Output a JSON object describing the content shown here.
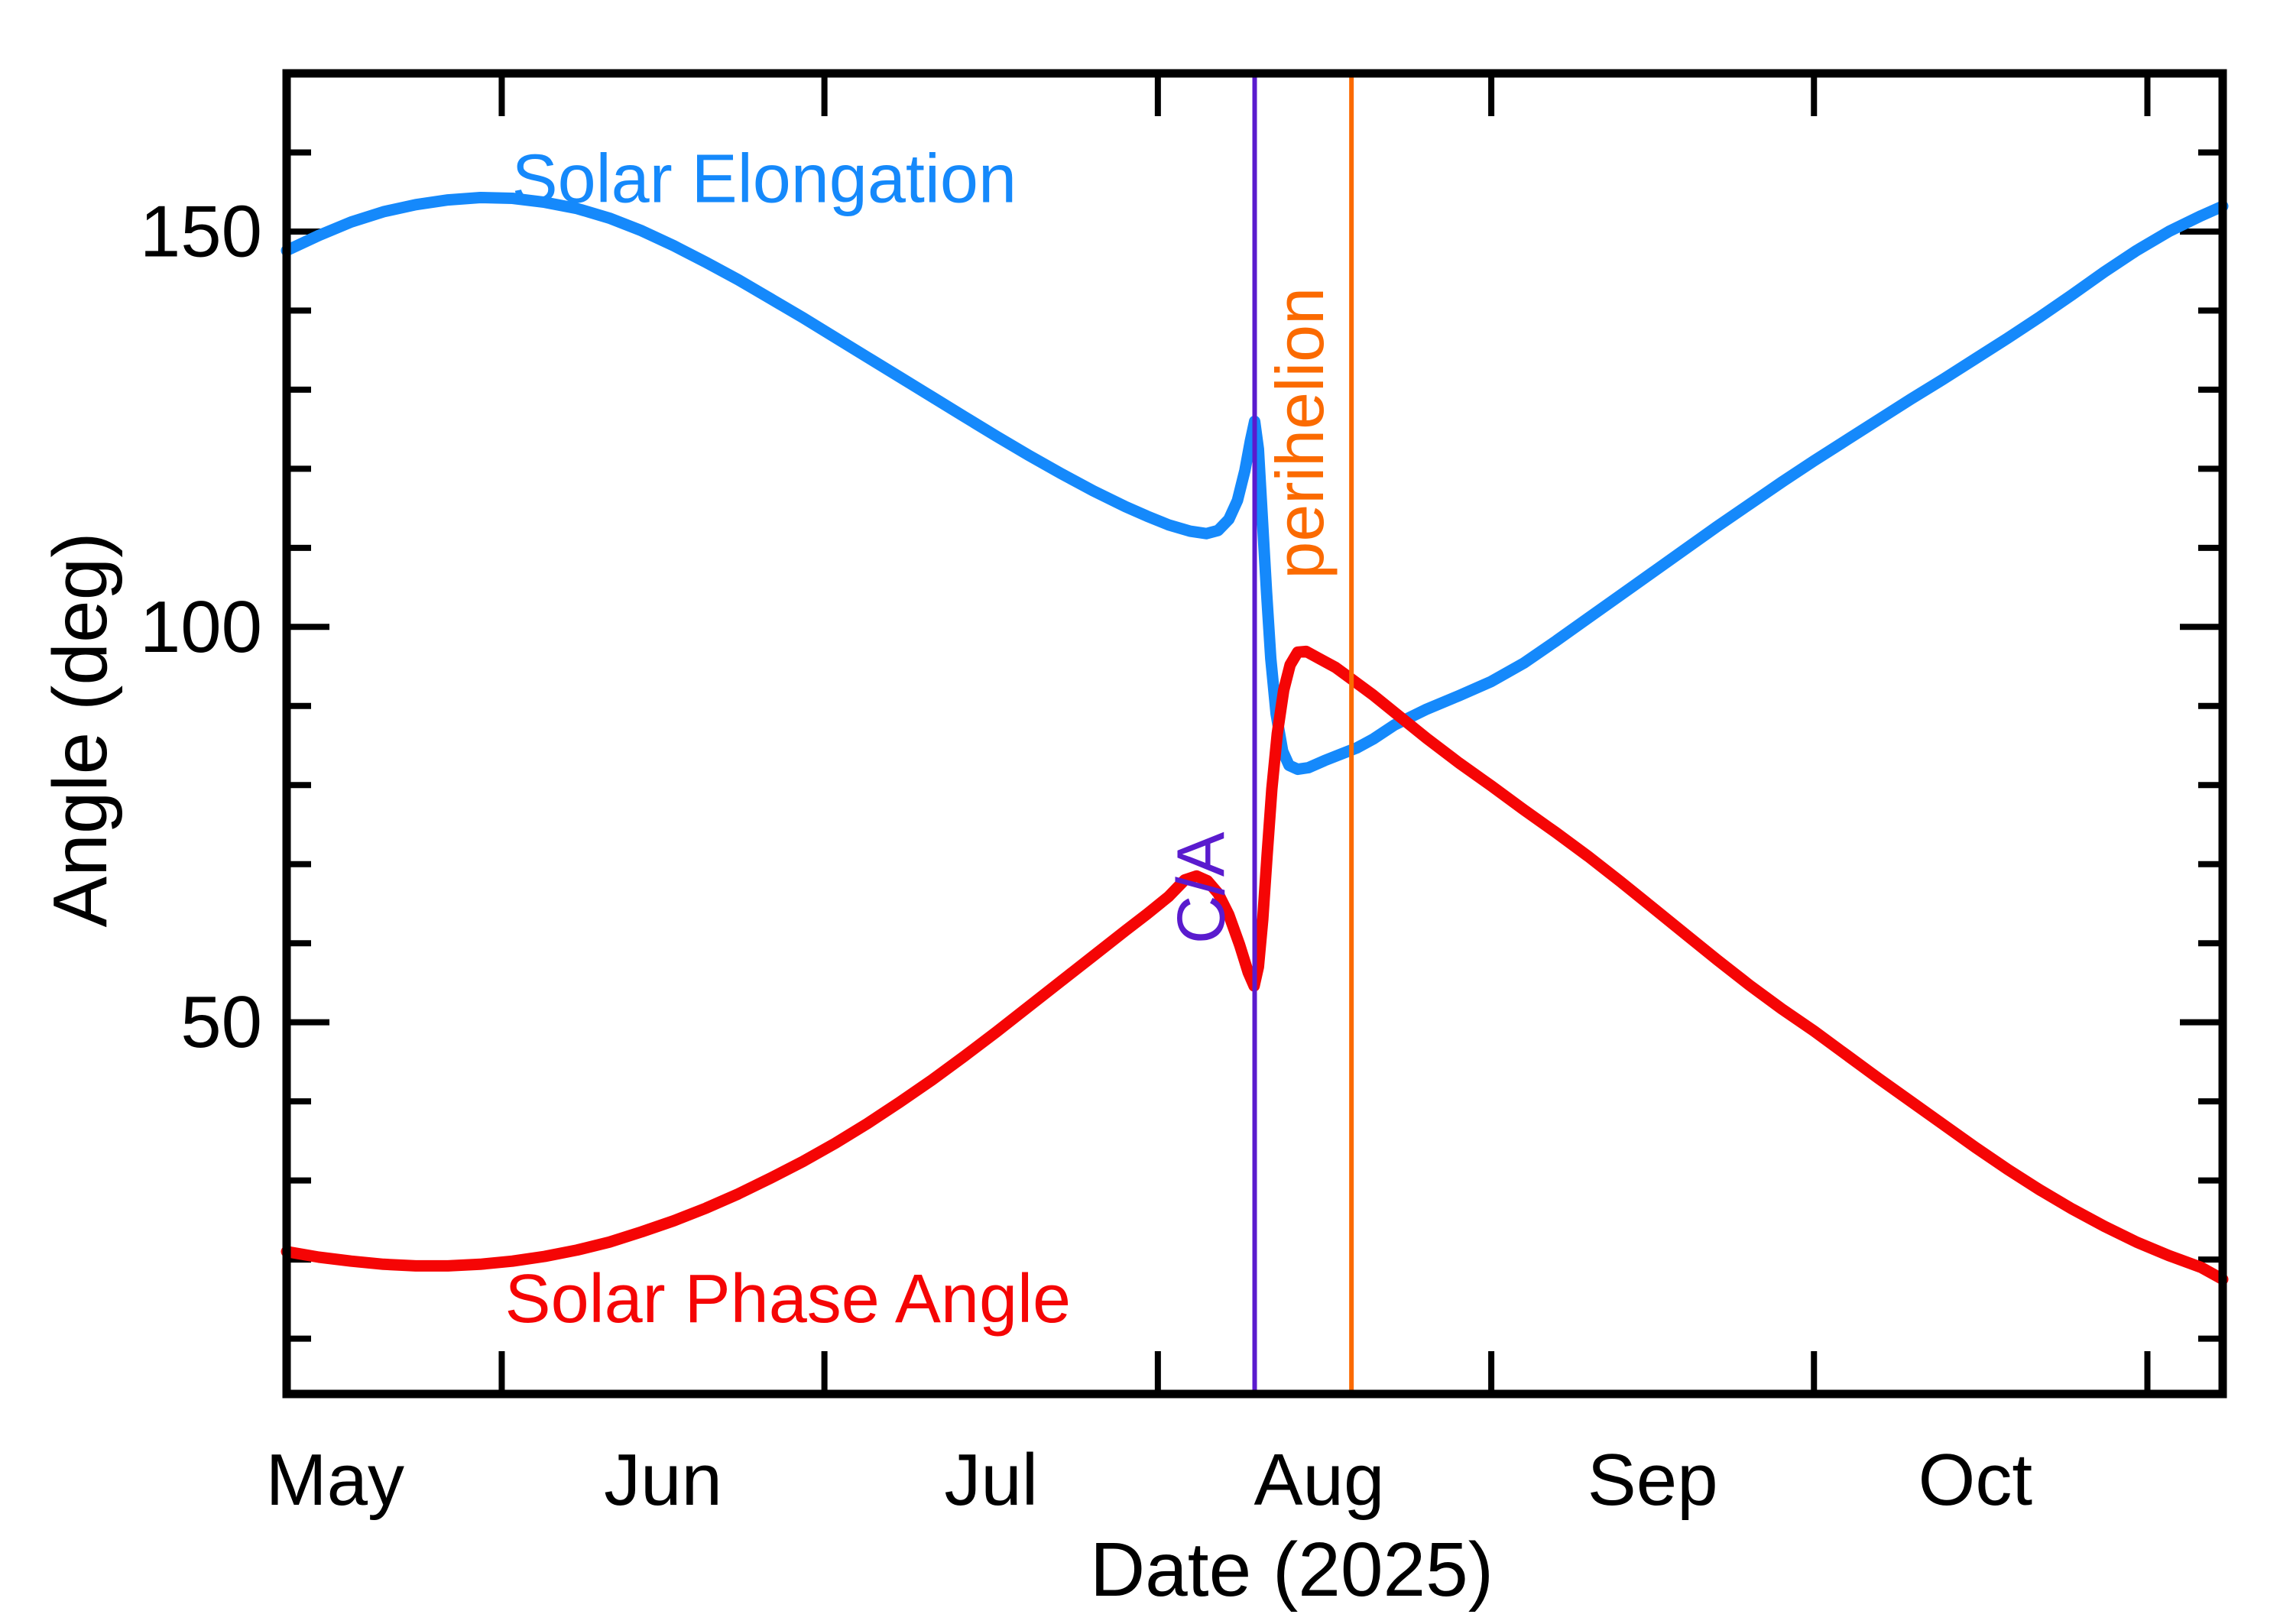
{
  "figure": {
    "background": "#ffffff",
    "frame_color": "#000000"
  },
  "chart_data": {
    "type": "line",
    "title": "",
    "xlabel": "Date (2025)",
    "ylabel": "Angle (deg)",
    "grid": "off",
    "legend": "none (inline curve labels)",
    "x_axis": {
      "kind": "date",
      "range_days": [
        0,
        180
      ],
      "major_tick_days": [
        20,
        50,
        81,
        112,
        142,
        173
      ],
      "month_labels": [
        {
          "label": "May",
          "day": 4.5
        },
        {
          "label": "Jun",
          "day": 35
        },
        {
          "label": "Jul",
          "day": 65.5
        },
        {
          "label": "Aug",
          "day": 96
        },
        {
          "label": "Sep",
          "day": 127
        },
        {
          "label": "Oct",
          "day": 157
        }
      ]
    },
    "y_axis": {
      "range": [
        3,
        170
      ],
      "major_ticks": [
        50,
        100,
        150
      ],
      "major_tick_labels": [
        "50",
        "100",
        "150"
      ],
      "minor_tick_step": 10
    },
    "series": [
      {
        "name": "Solar Elongation",
        "color": "#1589FB",
        "points": [
          [
            0,
            147.6
          ],
          [
            3,
            149.5
          ],
          [
            6,
            151.2
          ],
          [
            9,
            152.5
          ],
          [
            12,
            153.4
          ],
          [
            15,
            154.0
          ],
          [
            18,
            154.3
          ],
          [
            21,
            154.2
          ],
          [
            24,
            153.7
          ],
          [
            27,
            152.9
          ],
          [
            30,
            151.7
          ],
          [
            33,
            150.1
          ],
          [
            36,
            148.2
          ],
          [
            39,
            146.1
          ],
          [
            42,
            143.9
          ],
          [
            45,
            141.5
          ],
          [
            48,
            139.1
          ],
          [
            51,
            136.6
          ],
          [
            54,
            134.1
          ],
          [
            57,
            131.6
          ],
          [
            60,
            129.1
          ],
          [
            63,
            126.6
          ],
          [
            66,
            124.1
          ],
          [
            69,
            121.7
          ],
          [
            72,
            119.4
          ],
          [
            75,
            117.2
          ],
          [
            78,
            115.2
          ],
          [
            80,
            114.0
          ],
          [
            82,
            112.9
          ],
          [
            84,
            112.1
          ],
          [
            85.5,
            111.8
          ],
          [
            86.6,
            112.2
          ],
          [
            87.6,
            113.6
          ],
          [
            88.4,
            116.0
          ],
          [
            89.1,
            119.8
          ],
          [
            89.6,
            123.5
          ],
          [
            90,
            126.0
          ],
          [
            90.35,
            122.5
          ],
          [
            90.7,
            114.0
          ],
          [
            91.1,
            104.5
          ],
          [
            91.5,
            96.0
          ],
          [
            92,
            89.0
          ],
          [
            92.6,
            84.3
          ],
          [
            93.2,
            82.5
          ],
          [
            94,
            82.0
          ],
          [
            95,
            82.2
          ],
          [
            96.5,
            83.1
          ],
          [
            98,
            83.9
          ],
          [
            99.5,
            84.7
          ],
          [
            101,
            85.8
          ],
          [
            103,
            87.6
          ],
          [
            106,
            89.6
          ],
          [
            109,
            91.3
          ],
          [
            112,
            93.1
          ],
          [
            115,
            95.4
          ],
          [
            118,
            98.2
          ],
          [
            121,
            101.1
          ],
          [
            124,
            104.0
          ],
          [
            127,
            106.9
          ],
          [
            130,
            109.8
          ],
          [
            133,
            112.7
          ],
          [
            136,
            115.5
          ],
          [
            139,
            118.3
          ],
          [
            142,
            121.0
          ],
          [
            145,
            123.6
          ],
          [
            148,
            126.2
          ],
          [
            151,
            128.8
          ],
          [
            154,
            131.3
          ],
          [
            157,
            133.9
          ],
          [
            160,
            136.5
          ],
          [
            163,
            139.2
          ],
          [
            166,
            142.0
          ],
          [
            169,
            144.9
          ],
          [
            172,
            147.6
          ],
          [
            175,
            150.0
          ],
          [
            178,
            152.0
          ],
          [
            180,
            153.2
          ]
        ]
      },
      {
        "name": "Solar Phase Angle",
        "color": "#F50505",
        "points": [
          [
            0,
            21.0
          ],
          [
            3,
            20.3
          ],
          [
            6,
            19.8
          ],
          [
            9,
            19.4
          ],
          [
            12,
            19.2
          ],
          [
            15,
            19.2
          ],
          [
            18,
            19.4
          ],
          [
            21,
            19.8
          ],
          [
            24,
            20.4
          ],
          [
            27,
            21.2
          ],
          [
            30,
            22.2
          ],
          [
            33,
            23.5
          ],
          [
            36,
            24.9
          ],
          [
            39,
            26.5
          ],
          [
            42,
            28.3
          ],
          [
            45,
            30.3
          ],
          [
            48,
            32.4
          ],
          [
            51,
            34.7
          ],
          [
            54,
            37.2
          ],
          [
            57,
            39.9
          ],
          [
            60,
            42.7
          ],
          [
            63,
            45.7
          ],
          [
            66,
            48.8
          ],
          [
            69,
            52.0
          ],
          [
            72,
            55.2
          ],
          [
            75,
            58.4
          ],
          [
            78,
            61.6
          ],
          [
            80,
            63.7
          ],
          [
            82,
            65.9
          ],
          [
            83.5,
            68.0
          ],
          [
            84.6,
            68.5
          ],
          [
            85.6,
            67.9
          ],
          [
            86.6,
            66.3
          ],
          [
            87.6,
            63.6
          ],
          [
            88.6,
            59.8
          ],
          [
            89.4,
            56.3
          ],
          [
            89.95,
            54.6
          ],
          [
            90.35,
            57.0
          ],
          [
            90.75,
            63.0
          ],
          [
            91.15,
            71.0
          ],
          [
            91.6,
            79.5
          ],
          [
            92.1,
            86.5
          ],
          [
            92.7,
            92.0
          ],
          [
            93.3,
            95.2
          ],
          [
            94,
            96.8
          ],
          [
            94.8,
            96.9
          ],
          [
            96,
            96.0
          ],
          [
            97.5,
            94.9
          ],
          [
            99,
            93.4
          ],
          [
            101,
            91.4
          ],
          [
            103,
            89.2
          ],
          [
            106,
            85.9
          ],
          [
            109,
            82.8
          ],
          [
            112,
            79.9
          ],
          [
            115,
            76.9
          ],
          [
            118,
            74.0
          ],
          [
            121,
            71.0
          ],
          [
            124,
            67.8
          ],
          [
            127,
            64.5
          ],
          [
            130,
            61.2
          ],
          [
            133,
            57.9
          ],
          [
            136,
            54.7
          ],
          [
            139,
            51.7
          ],
          [
            142,
            48.9
          ],
          [
            145,
            45.9
          ],
          [
            148,
            42.9
          ],
          [
            151,
            40.0
          ],
          [
            154,
            37.1
          ],
          [
            157,
            34.2
          ],
          [
            160,
            31.4
          ],
          [
            163,
            28.8
          ],
          [
            166,
            26.4
          ],
          [
            169,
            24.2
          ],
          [
            172,
            22.2
          ],
          [
            175,
            20.5
          ],
          [
            178,
            19.0
          ],
          [
            180,
            17.5
          ]
        ]
      }
    ],
    "annotations": {
      "vlines": [
        {
          "name": "close-approach-line",
          "label": "C/A",
          "color": "#5A1BCE",
          "day": 90.0,
          "stroke_width": 6
        },
        {
          "name": "perihelion-line",
          "label": "perihelion",
          "color": "#FB6A00",
          "day": 99.0,
          "stroke_width": 6
        }
      ],
      "text_labels": [
        {
          "name": "elongation-curve-label",
          "text": "Solar Elongation",
          "color": "#1589FB",
          "day": 44.4,
          "deg": 156.6,
          "rotation": 0,
          "font_size": 90
        },
        {
          "name": "phase-curve-label",
          "text": "Solar Phase Angle",
          "color": "#F50505",
          "day": 46.6,
          "deg": 15.0,
          "rotation": 0,
          "font_size": 90
        },
        {
          "name": "close-approach-label",
          "text": "C/A",
          "color": "#5A1BCE",
          "day": 85.0,
          "deg": 67.0,
          "rotation": -90,
          "font_size": 88
        },
        {
          "name": "perihelion-label",
          "text": "perihelion",
          "color": "#FB6A00",
          "day": 94.2,
          "deg": 124.5,
          "rotation": -90,
          "font_size": 88
        }
      ]
    }
  }
}
